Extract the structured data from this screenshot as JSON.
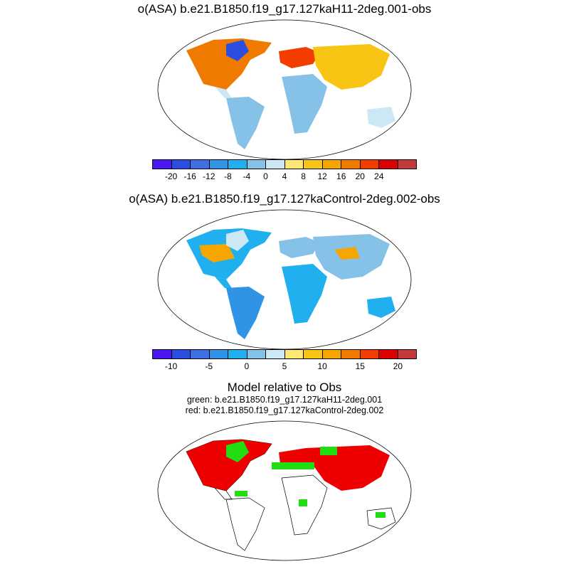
{
  "panel1": {
    "title": "o(ASA) b.e21.B1850.f19_g17.127kaH11-2deg.001-obs",
    "colorbar_ticks": [
      "-20",
      "-16",
      "-12",
      "-8",
      "-4",
      "0",
      "4",
      "8",
      "12",
      "16",
      "20",
      "24"
    ]
  },
  "panel2": {
    "title": "o(ASA) b.e21.B1850.f19_g17.127kaControl-2deg.002-obs",
    "colorbar_ticks": [
      "-10",
      "-5",
      "0",
      "5",
      "10",
      "15",
      "20"
    ]
  },
  "panel3": {
    "title": "Model relative to Obs",
    "legend_green": "green: b.e21.B1850.f19_g17.127kaH11-2deg.001",
    "legend_red": "red: b.e21.B1850.f19_g17.127kaControl-2deg.002"
  },
  "palette": [
    "#4b16f2",
    "#2c4ee0",
    "#3f6fe3",
    "#2f93e6",
    "#20b0ef",
    "#86c1e8",
    "#cde8f5",
    "#fde873",
    "#f8c514",
    "#f5a700",
    "#f07a00",
    "#f23c00",
    "#dc0000",
    "#c43939"
  ],
  "colors": {
    "green": "#22dd11",
    "red": "#ee0000"
  }
}
